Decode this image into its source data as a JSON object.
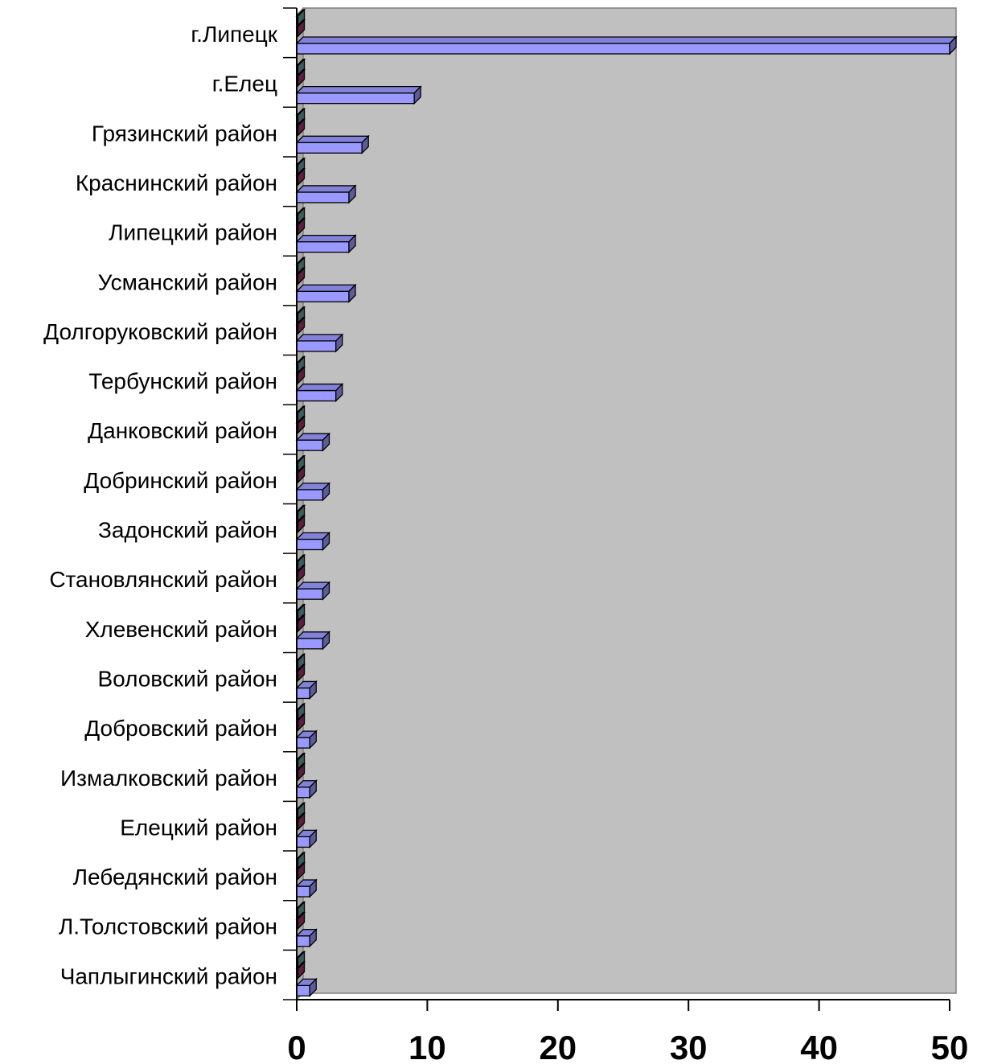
{
  "chart_data": {
    "type": "bar",
    "orientation": "horizontal",
    "style": "3d-clustered",
    "title": "",
    "xlabel": "",
    "ylabel": "",
    "categories": [
      "г.Липецк",
      "г.Елец",
      "Грязинский район",
      "Краснинский район",
      "Липецкий район",
      "Усманский район",
      "Долгоруковский район",
      "Тербунский район",
      "Данковский район",
      "Добринский район",
      "Задонский район",
      "Становлянский район",
      "Хлевенский район",
      "Воловский район",
      "Добровский район",
      "Измалковский район",
      "Елецкий район",
      "Лебедянский район",
      "Л.Толстовский район",
      "Чаплыгинский район"
    ],
    "series": [
      {
        "values": [
          50,
          9,
          5,
          4,
          4,
          4,
          3,
          3,
          2,
          2,
          2,
          2,
          2,
          1,
          1,
          1,
          1,
          1,
          1,
          1
        ]
      },
      {
        "values": [
          0,
          0,
          0,
          0,
          0,
          0,
          0,
          0,
          0,
          0,
          0,
          0,
          0,
          0,
          0,
          0,
          0,
          0,
          0,
          0
        ]
      },
      {
        "values": [
          0,
          0,
          0,
          0,
          0,
          0,
          0,
          0,
          0,
          0,
          0,
          0,
          0,
          0,
          0,
          0,
          0,
          0,
          0,
          0
        ]
      }
    ],
    "xlim": [
      0,
      50
    ],
    "xticks": [
      "0",
      "10",
      "20",
      "30",
      "40",
      "50"
    ],
    "grid": false,
    "legend": "none",
    "colors": {
      "plot_background": "#c0c0c0",
      "main_series": "#9999ff",
      "secondary_series": "#993366",
      "tertiary_series": "#669999",
      "axis": "#000000"
    }
  }
}
